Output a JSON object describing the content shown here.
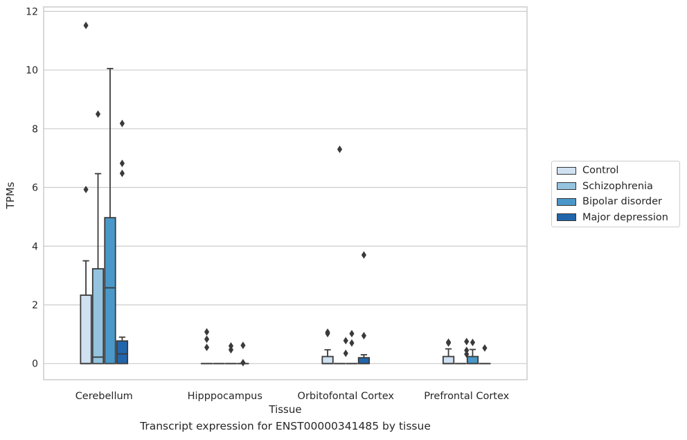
{
  "chart_data": {
    "type": "box",
    "categories": [
      "Cerebellum",
      "Hipppocampus",
      "Orbitofontal Cortex",
      "Prefrontal Cortex"
    ],
    "xlabel": "Tissue",
    "ylabel": "TPMs",
    "ylim": [
      -0.55,
      12.15
    ],
    "yticks": [
      0,
      2,
      4,
      6,
      8,
      10,
      12
    ],
    "grid": "horizontal",
    "legend_position": "right",
    "series": [
      {
        "name": "Control",
        "color": "#d0e1f2",
        "boxes": [
          {
            "q1": 0,
            "median": 0,
            "q3": 2.33,
            "whisker_low": 0,
            "whisker_high": 3.5,
            "outliers": [
              11.52,
              5.93
            ]
          },
          {
            "q1": 0,
            "median": 0,
            "q3": 0,
            "whisker_low": 0,
            "whisker_high": 0,
            "outliers": [
              1.08,
              0.83,
              0.55
            ]
          },
          {
            "q1": 0,
            "median": 0,
            "q3": 0.24,
            "whisker_low": 0,
            "whisker_high": 0.47,
            "outliers": [
              1.07,
              1.02
            ]
          },
          {
            "q1": 0,
            "median": 0,
            "q3": 0.24,
            "whisker_low": 0,
            "whisker_high": 0.5,
            "outliers": [
              0.73,
              0.7
            ]
          }
        ]
      },
      {
        "name": "Schizophrenia",
        "color": "#94c4df",
        "boxes": [
          {
            "q1": 0,
            "median": 0.22,
            "q3": 3.23,
            "whisker_low": 0,
            "whisker_high": 6.47,
            "outliers": [
              8.5
            ]
          },
          {
            "q1": 0,
            "median": 0,
            "q3": 0,
            "whisker_low": 0,
            "whisker_high": 0,
            "outliers": []
          },
          {
            "q1": 0,
            "median": 0,
            "q3": 0,
            "whisker_low": 0,
            "whisker_high": 0,
            "outliers": [
              7.3
            ]
          },
          {
            "q1": 0,
            "median": 0,
            "q3": 0,
            "whisker_low": 0,
            "whisker_high": 0,
            "outliers": []
          }
        ]
      },
      {
        "name": "Bipolar disorder",
        "color": "#4a98c9",
        "boxes": [
          {
            "q1": 0,
            "median": 2.58,
            "q3": 4.97,
            "whisker_low": 0,
            "whisker_high": 10.05,
            "outliers": []
          },
          {
            "q1": 0,
            "median": 0,
            "q3": 0,
            "whisker_low": 0,
            "whisker_high": 0,
            "outliers": [
              0.6,
              0.47
            ]
          },
          {
            "q1": 0,
            "median": 0,
            "q3": 0,
            "whisker_low": 0,
            "whisker_high": 0,
            "outliers": [
              1.02,
              0.7
            ]
          },
          {
            "q1": 0,
            "median": 0,
            "q3": 0.24,
            "whisker_low": 0,
            "whisker_high": 0.48,
            "outliers": [
              0.72
            ]
          }
        ]
      },
      {
        "name": "Major depression",
        "color": "#2166ac",
        "boxes": [
          {
            "q1": 0,
            "median": 0.33,
            "q3": 0.77,
            "whisker_low": 0,
            "whisker_high": 0.9,
            "outliers": [
              8.18,
              6.82,
              6.48
            ]
          },
          {
            "q1": 0,
            "median": 0,
            "q3": 0,
            "whisker_low": 0,
            "whisker_high": 0,
            "outliers": [
              0.62,
              0.03
            ]
          },
          {
            "q1": 0,
            "median": 0,
            "q3": 0.2,
            "whisker_low": 0,
            "whisker_high": 0.3,
            "outliers": [
              3.7,
              0.95
            ]
          },
          {
            "q1": 0,
            "median": 0,
            "q3": 0,
            "whisker_low": 0,
            "whisker_high": 0,
            "outliers": [
              0.53
            ]
          }
        ]
      }
    ],
    "extra_outliers": [
      {
        "category_index": 2,
        "x_offset_series": 1.5,
        "values": [
          0.78,
          0.35
        ]
      },
      {
        "category_index": 3,
        "x_offset_series": 1.5,
        "values": [
          0.75,
          0.45,
          0.32
        ]
      }
    ],
    "caption": "Transcript expression for ENST00000341485 by tissue"
  }
}
